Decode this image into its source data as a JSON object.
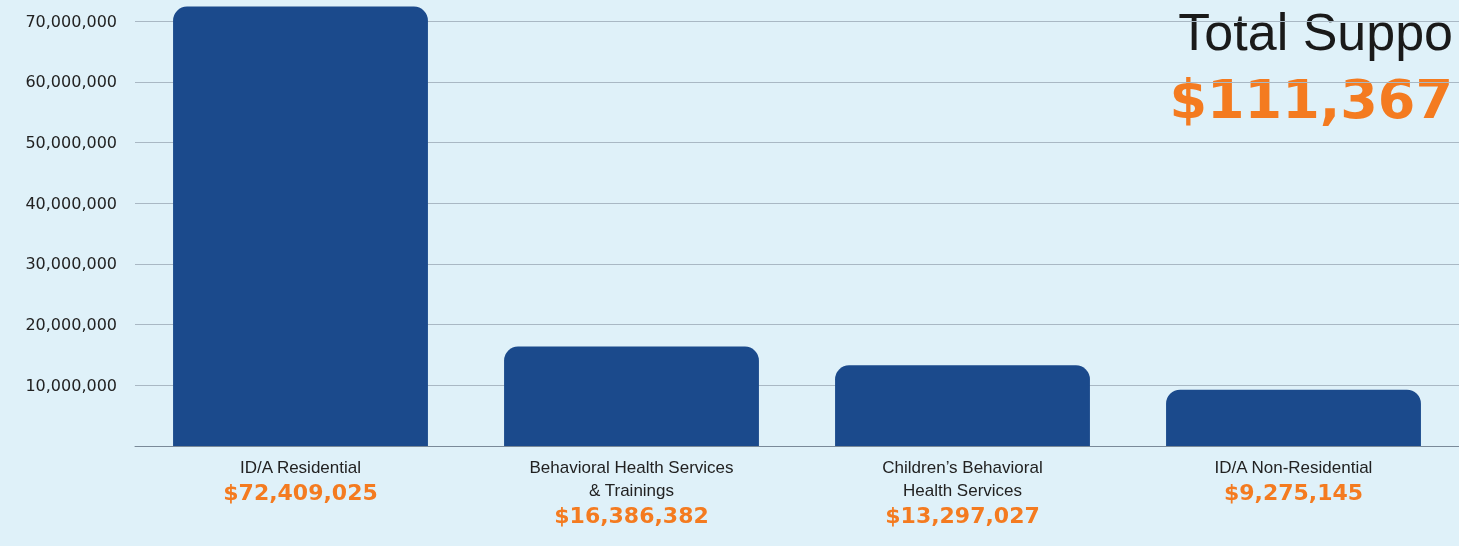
{
  "chart_data": {
    "type": "bar",
    "categories": [
      "ID/A Residential",
      "Behavioral Health Services\n& Trainings",
      "Children’s Behavioral\nHealth Services",
      "ID/A Non-Residential"
    ],
    "values": [
      72409025,
      16386382,
      13297027,
      9275145
    ],
    "value_labels": [
      "$72,409,025",
      "$16,386,382",
      "$13,297,027",
      "$9,275,145"
    ],
    "color": "#1b4a8c",
    "ylim": [
      0,
      73500000
    ],
    "yticks": [
      {
        "value": 0,
        "label": null
      },
      {
        "value": 10000000,
        "label": "10,000,000"
      },
      {
        "value": 20000000,
        "label": "20,000,000"
      },
      {
        "value": 30000000,
        "label": "30,000,000"
      },
      {
        "value": 40000000,
        "label": "40,000,000"
      },
      {
        "value": 50000000,
        "label": "50,000,000"
      },
      {
        "value": 60000000,
        "label": "60,000,000"
      },
      {
        "value": 70000000,
        "label": "70,000,000"
      }
    ],
    "grid": "y",
    "annotations": [
      "Total Suppo",
      "$111,367"
    ]
  }
}
